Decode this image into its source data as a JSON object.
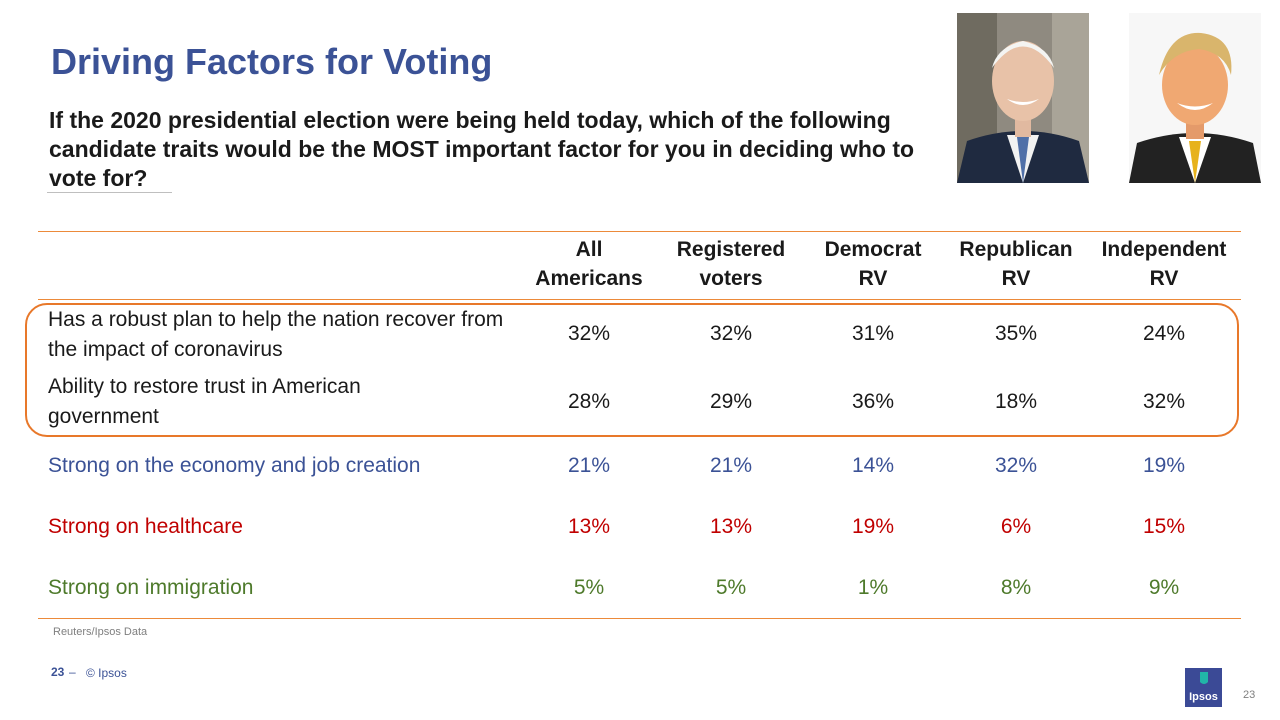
{
  "slide": {
    "title": "Driving Factors for Voting",
    "question": "If the 2020 presidential election were being held today, which of the following candidate traits would be the MOST important factor for you in deciding who to vote for?",
    "source": "Reuters/Ipsos Data",
    "footer_number": "23",
    "footer_dash": "–",
    "footer_copyright": "© Ipsos",
    "logo_text": "Ipsos",
    "page_number": "23"
  },
  "colors": {
    "title_blue": "#3b5296",
    "accent_orange": "#e8782a",
    "row_black": "#1a1a1a",
    "row_blue": "#3b5296",
    "row_red": "#c00000",
    "row_green": "#4e7a2b"
  },
  "table": {
    "columns": [
      {
        "line1": "All",
        "line2": "Americans"
      },
      {
        "line1": "Registered",
        "line2": "voters"
      },
      {
        "line1": "Democrat",
        "line2": "RV"
      },
      {
        "line1": "Republican",
        "line2": "RV"
      },
      {
        "line1": "Independent",
        "line2": "RV"
      }
    ],
    "rows": [
      {
        "label": "Has a robust plan to help the nation recover from the impact of coronavirus",
        "values": [
          "32%",
          "32%",
          "31%",
          "35%",
          "24%"
        ]
      },
      {
        "label": "Ability to restore trust in American government",
        "values": [
          "28%",
          "29%",
          "36%",
          "18%",
          "32%"
        ]
      },
      {
        "label": "Strong on the economy and job creation",
        "values": [
          "21%",
          "21%",
          "14%",
          "32%",
          "19%"
        ]
      },
      {
        "label": "Strong on healthcare",
        "values": [
          "13%",
          "13%",
          "19%",
          "6%",
          "15%"
        ]
      },
      {
        "label": "Strong on immigration",
        "values": [
          "5%",
          "5%",
          "1%",
          "8%",
          "9%"
        ]
      }
    ]
  }
}
